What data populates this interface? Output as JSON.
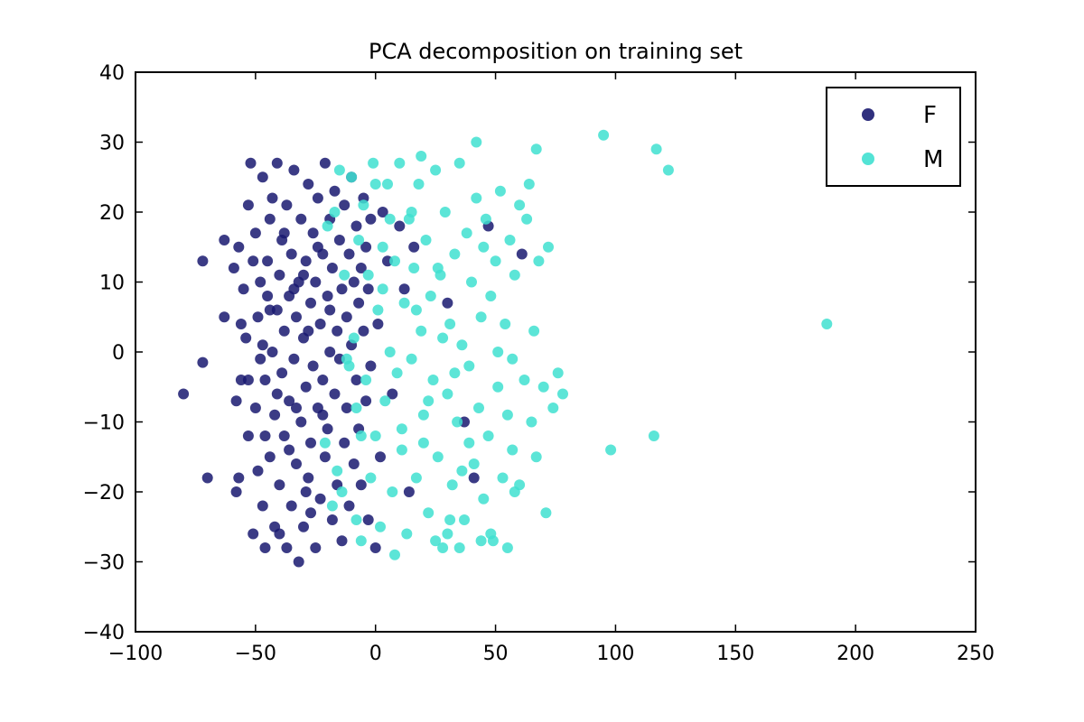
{
  "chart_data": {
    "type": "scatter",
    "title": "PCA decomposition on training set",
    "xlabel": "",
    "ylabel": "",
    "xlim": [
      -100,
      250
    ],
    "ylim": [
      -40,
      40
    ],
    "xticks": [
      -100,
      -50,
      0,
      50,
      100,
      150,
      200,
      250
    ],
    "yticks": [
      -40,
      -30,
      -20,
      -10,
      0,
      10,
      20,
      30,
      40
    ],
    "xtick_labels": [
      "−100",
      "−50",
      "0",
      "50",
      "100",
      "150",
      "200",
      "250"
    ],
    "ytick_labels": [
      "−40",
      "−30",
      "−20",
      "−10",
      "0",
      "10",
      "20",
      "30",
      "40"
    ],
    "grid": false,
    "legend": {
      "location": "top-right"
    },
    "series": [
      {
        "name": "F",
        "color": "#191970",
        "points": [
          [
            -80,
            -6
          ],
          [
            -72,
            13
          ],
          [
            -72,
            -1.5
          ],
          [
            -70,
            -18
          ],
          [
            -63,
            16
          ],
          [
            -63,
            5
          ],
          [
            -59,
            12
          ],
          [
            -58,
            -7
          ],
          [
            -58,
            -20
          ],
          [
            -57,
            -18
          ],
          [
            -57,
            15
          ],
          [
            -56,
            4
          ],
          [
            -56,
            -4
          ],
          [
            -55,
            9
          ],
          [
            -54,
            2
          ],
          [
            -53,
            -12
          ],
          [
            -53,
            21
          ],
          [
            -52,
            27
          ],
          [
            -51,
            -26
          ],
          [
            -51,
            13
          ],
          [
            -50,
            -8
          ],
          [
            -50,
            17
          ],
          [
            -49,
            5
          ],
          [
            -49,
            -17
          ],
          [
            -48,
            -1
          ],
          [
            -48,
            10
          ],
          [
            -47,
            -22
          ],
          [
            -47,
            25
          ],
          [
            -46,
            -28
          ],
          [
            -46,
            -4
          ],
          [
            -45,
            8
          ],
          [
            -45,
            13
          ],
          [
            -44,
            -15
          ],
          [
            -44,
            19
          ],
          [
            -43,
            0
          ],
          [
            -43,
            22
          ],
          [
            -42,
            -9
          ],
          [
            -42,
            -25
          ],
          [
            -41,
            6
          ],
          [
            -41,
            27
          ],
          [
            -40,
            -19
          ],
          [
            -40,
            11
          ],
          [
            -39,
            -3
          ],
          [
            -39,
            16
          ],
          [
            -38,
            -12
          ],
          [
            -38,
            3
          ],
          [
            -37,
            21
          ],
          [
            -37,
            -28
          ],
          [
            -36,
            -7
          ],
          [
            -36,
            8
          ],
          [
            -35,
            -22
          ],
          [
            -35,
            14
          ],
          [
            -34,
            -1
          ],
          [
            -34,
            26
          ],
          [
            -33,
            -16
          ],
          [
            -33,
            5
          ],
          [
            -32,
            10
          ],
          [
            -32,
            -30
          ],
          [
            -31,
            -10
          ],
          [
            -31,
            19
          ],
          [
            -30,
            2
          ],
          [
            -30,
            -25
          ],
          [
            -29,
            13
          ],
          [
            -29,
            -5
          ],
          [
            -28,
            24
          ],
          [
            -28,
            -18
          ],
          [
            -27,
            7
          ],
          [
            -27,
            -13
          ],
          [
            -26,
            -2
          ],
          [
            -26,
            17
          ],
          [
            -25,
            -28
          ],
          [
            -25,
            10
          ],
          [
            -24,
            22
          ],
          [
            -24,
            -8
          ],
          [
            -23,
            4
          ],
          [
            -23,
            -21
          ],
          [
            -22,
            14
          ],
          [
            -22,
            -4
          ],
          [
            -21,
            27
          ],
          [
            -21,
            -15
          ],
          [
            -20,
            8
          ],
          [
            -20,
            -11
          ],
          [
            -19,
            0
          ],
          [
            -19,
            19
          ],
          [
            -18,
            -24
          ],
          [
            -18,
            12
          ],
          [
            -17,
            -6
          ],
          [
            -17,
            23
          ],
          [
            -16,
            3
          ],
          [
            -16,
            -19
          ],
          [
            -15,
            16
          ],
          [
            -15,
            -1
          ],
          [
            -14,
            9
          ],
          [
            -14,
            -27
          ],
          [
            -13,
            -13
          ],
          [
            -13,
            21
          ],
          [
            -12,
            5
          ],
          [
            -12,
            -8
          ],
          [
            -11,
            14
          ],
          [
            -11,
            -22
          ],
          [
            -10,
            1
          ],
          [
            -10,
            25
          ],
          [
            -9,
            -16
          ],
          [
            -9,
            10
          ],
          [
            -8,
            -4
          ],
          [
            -8,
            18
          ],
          [
            -7,
            7
          ],
          [
            -7,
            -11
          ],
          [
            -6,
            12
          ],
          [
            -6,
            -19
          ],
          [
            -5,
            3
          ],
          [
            -5,
            22
          ],
          [
            -4,
            -7
          ],
          [
            -4,
            15
          ],
          [
            -3,
            9
          ],
          [
            -3,
            -24
          ],
          [
            -2,
            19
          ],
          [
            -2,
            -2
          ],
          [
            0,
            -28
          ],
          [
            1,
            4
          ],
          [
            2,
            -15
          ],
          [
            3,
            20
          ],
          [
            5,
            13
          ],
          [
            7,
            -6
          ],
          [
            10,
            18
          ],
          [
            12,
            9
          ],
          [
            14,
            -20
          ],
          [
            16,
            15
          ],
          [
            30,
            7
          ],
          [
            37,
            -10
          ],
          [
            41,
            -18
          ],
          [
            47,
            18
          ],
          [
            61,
            14
          ],
          [
            -53,
            -4
          ],
          [
            -47,
            1
          ],
          [
            -41,
            -6
          ],
          [
            -36,
            -14
          ],
          [
            -30,
            11
          ],
          [
            -27,
            -23
          ],
          [
            -22,
            -9
          ],
          [
            -19,
            6
          ],
          [
            -44,
            6
          ],
          [
            -38,
            17
          ],
          [
            -33,
            -8
          ],
          [
            -28,
            3
          ],
          [
            -24,
            15
          ],
          [
            -46,
            -12
          ],
          [
            -40,
            -26
          ],
          [
            -34,
            9
          ],
          [
            -29,
            -20
          ]
        ]
      },
      {
        "name": "M",
        "color": "#40E0D0",
        "points": [
          [
            -21,
            -13
          ],
          [
            -18,
            -22
          ],
          [
            -17,
            20
          ],
          [
            -16,
            -17
          ],
          [
            -15,
            26
          ],
          [
            -13,
            11
          ],
          [
            -11,
            -2
          ],
          [
            -10,
            25
          ],
          [
            -9,
            2
          ],
          [
            -8,
            -8
          ],
          [
            -7,
            16
          ],
          [
            -6,
            -27
          ],
          [
            -5,
            21
          ],
          [
            -4,
            -4
          ],
          [
            -3,
            11
          ],
          [
            -2,
            -18
          ],
          [
            -1,
            27
          ],
          [
            0,
            -12
          ],
          [
            1,
            6
          ],
          [
            2,
            -25
          ],
          [
            3,
            15
          ],
          [
            4,
            -7
          ],
          [
            5,
            24
          ],
          [
            6,
            0
          ],
          [
            7,
            -20
          ],
          [
            8,
            13
          ],
          [
            9,
            -3
          ],
          [
            10,
            27
          ],
          [
            11,
            -14
          ],
          [
            12,
            7
          ],
          [
            13,
            -26
          ],
          [
            14,
            19
          ],
          [
            15,
            -1
          ],
          [
            16,
            12
          ],
          [
            17,
            -18
          ],
          [
            18,
            24
          ],
          [
            19,
            3
          ],
          [
            20,
            -9
          ],
          [
            21,
            16
          ],
          [
            22,
            -23
          ],
          [
            23,
            8
          ],
          [
            24,
            -4
          ],
          [
            25,
            26
          ],
          [
            26,
            -15
          ],
          [
            27,
            11
          ],
          [
            28,
            -28
          ],
          [
            29,
            20
          ],
          [
            30,
            -6
          ],
          [
            31,
            4
          ],
          [
            32,
            -19
          ],
          [
            33,
            14
          ],
          [
            34,
            -10
          ],
          [
            35,
            27
          ],
          [
            36,
            1
          ],
          [
            37,
            -24
          ],
          [
            38,
            17
          ],
          [
            39,
            -2
          ],
          [
            40,
            10
          ],
          [
            41,
            -16
          ],
          [
            42,
            22
          ],
          [
            43,
            -8
          ],
          [
            44,
            5
          ],
          [
            45,
            -21
          ],
          [
            46,
            19
          ],
          [
            47,
            -12
          ],
          [
            48,
            8
          ],
          [
            49,
            -27
          ],
          [
            50,
            13
          ],
          [
            51,
            -5
          ],
          [
            52,
            23
          ],
          [
            53,
            -18
          ],
          [
            54,
            4
          ],
          [
            55,
            -9
          ],
          [
            56,
            16
          ],
          [
            57,
            -14
          ],
          [
            58,
            11
          ],
          [
            60,
            -19
          ],
          [
            62,
            -4
          ],
          [
            63,
            19
          ],
          [
            65,
            -10
          ],
          [
            66,
            3
          ],
          [
            67,
            -15
          ],
          [
            68,
            13
          ],
          [
            70,
            -5
          ],
          [
            71,
            -23
          ],
          [
            72,
            15
          ],
          [
            74,
            -8
          ],
          [
            76,
            -3
          ],
          [
            78,
            -6
          ],
          [
            95,
            31
          ],
          [
            98,
            -14
          ],
          [
            116,
            -12
          ],
          [
            117,
            29
          ],
          [
            122,
            26
          ],
          [
            188,
            4
          ],
          [
            67,
            29
          ],
          [
            64,
            24
          ],
          [
            60,
            21
          ],
          [
            57,
            -1
          ],
          [
            55,
            -28
          ],
          [
            19,
            28
          ],
          [
            25,
            -27
          ],
          [
            30,
            -26
          ],
          [
            35,
            -28
          ],
          [
            42,
            30
          ],
          [
            48,
            -26
          ],
          [
            -12,
            -1
          ],
          [
            -8,
            -24
          ],
          [
            0,
            24
          ],
          [
            6,
            19
          ],
          [
            11,
            -11
          ],
          [
            15,
            20
          ],
          [
            20,
            -13
          ],
          [
            26,
            12
          ],
          [
            31,
            -24
          ],
          [
            36,
            -17
          ],
          [
            44,
            -27
          ],
          [
            51,
            0
          ],
          [
            58,
            -20
          ],
          [
            17,
            6
          ],
          [
            22,
            -7
          ],
          [
            28,
            2
          ],
          [
            33,
            -3
          ],
          [
            39,
            -13
          ],
          [
            45,
            15
          ],
          [
            8,
            -29
          ],
          [
            -20,
            18
          ],
          [
            -14,
            -20
          ],
          [
            -6,
            -12
          ],
          [
            3,
            9
          ]
        ]
      }
    ]
  }
}
